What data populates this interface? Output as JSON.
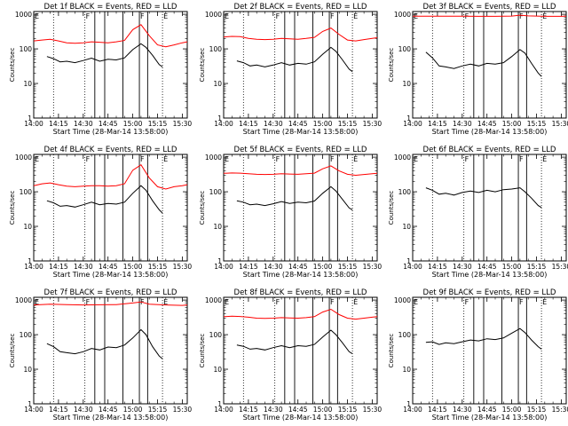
{
  "chart_data": {
    "type": "line",
    "layout": "3x3 grid",
    "x_ticks": [
      "14:00",
      "14:15",
      "14:30",
      "14:45",
      "15:00",
      "15:15",
      "15:30"
    ],
    "xlabel": "Start Time (28-Mar-14 13:58:00)",
    "ylabel": "Counts/sec",
    "y_scale": "log",
    "ylim": [
      1,
      1200
    ],
    "y_ticks": [
      "1",
      "10",
      "100",
      "1000"
    ],
    "dotted_lines_at": [
      "14:12",
      "14:31",
      "15:18",
      "15:33"
    ],
    "solid_lines_at": [
      "14:37",
      "14:43",
      "14:54",
      "15:04",
      "15:09"
    ],
    "segment_markers": [
      "E",
      "F",
      "F",
      "E"
    ],
    "panels": [
      {
        "title": "Det 1f BLACK = Events, RED = LLD",
        "series": [
          {
            "name": "Events",
            "color": "#000000",
            "x": [
              "14:08",
              "14:12",
              "14:16",
              "14:20",
              "14:25",
              "14:30",
              "14:35",
              "14:40",
              "14:45",
              "14:50",
              "14:55",
              "15:00",
              "15:05",
              "15:08",
              "15:12",
              "15:16",
              "15:18"
            ],
            "y": [
              60,
              52,
              42,
              44,
              40,
              46,
              54,
              44,
              50,
              48,
              55,
              95,
              140,
              110,
              65,
              35,
              30
            ]
          },
          {
            "name": "LLD",
            "color": "#ff0000",
            "x": [
              "14:00",
              "14:05",
              "14:10",
              "14:15",
              "14:20",
              "14:25",
              "14:30",
              "14:35",
              "14:40",
              "14:45",
              "14:50",
              "14:55",
              "15:00",
              "15:05",
              "15:10",
              "15:15",
              "15:20",
              "15:25",
              "15:30",
              "15:33"
            ],
            "y": [
              170,
              180,
              190,
              170,
              150,
              145,
              150,
              160,
              155,
              150,
              160,
              175,
              360,
              500,
              240,
              130,
              115,
              130,
              150,
              160
            ]
          }
        ]
      },
      {
        "title": "Det 2f BLACK = Events, RED = LLD",
        "series": [
          {
            "name": "Events",
            "color": "#000000",
            "x": [
              "14:08",
              "14:12",
              "14:16",
              "14:20",
              "14:25",
              "14:30",
              "14:35",
              "14:40",
              "14:45",
              "14:50",
              "14:55",
              "15:00",
              "15:05",
              "15:08",
              "15:12",
              "15:16",
              "15:18"
            ],
            "y": [
              45,
              40,
              32,
              34,
              30,
              34,
              40,
              34,
              38,
              36,
              42,
              70,
              110,
              85,
              48,
              26,
              22
            ]
          },
          {
            "name": "LLD",
            "color": "#ff0000",
            "x": [
              "14:00",
              "14:05",
              "14:10",
              "14:15",
              "14:20",
              "14:25",
              "14:30",
              "14:35",
              "14:40",
              "14:45",
              "14:50",
              "14:55",
              "15:00",
              "15:05",
              "15:10",
              "15:15",
              "15:20",
              "15:25",
              "15:30",
              "15:33"
            ],
            "y": [
              220,
              230,
              225,
              200,
              190,
              185,
              190,
              200,
              195,
              190,
              200,
              215,
              320,
              400,
              260,
              180,
              170,
              185,
              200,
              210
            ]
          }
        ]
      },
      {
        "title": "Det 3f BLACK = Events, RED = LLD",
        "series": [
          {
            "name": "Events",
            "color": "#000000",
            "x": [
              "14:08",
              "14:12",
              "14:16",
              "14:20",
              "14:25",
              "14:30",
              "14:35",
              "14:40",
              "14:45",
              "14:50",
              "14:55",
              "15:00",
              "15:05",
              "15:08",
              "15:12",
              "15:16",
              "15:18"
            ],
            "y": [
              80,
              55,
              32,
              30,
              27,
              32,
              36,
              32,
              38,
              36,
              40,
              60,
              95,
              75,
              38,
              20,
              16
            ]
          },
          {
            "name": "LLD",
            "color": "#ff0000",
            "x": [
              "14:00",
              "14:10",
              "14:20",
              "14:30",
              "14:40",
              "14:50",
              "15:00",
              "15:05",
              "15:10",
              "15:20",
              "15:30",
              "15:33"
            ],
            "y": [
              880,
              880,
              880,
              880,
              870,
              870,
              890,
              940,
              900,
              870,
              870,
              880
            ]
          }
        ]
      },
      {
        "title": "Det 4f BLACK = Events, RED = LLD",
        "series": [
          {
            "name": "Events",
            "color": "#000000",
            "x": [
              "14:08",
              "14:12",
              "14:16",
              "14:20",
              "14:25",
              "14:30",
              "14:35",
              "14:40",
              "14:45",
              "14:50",
              "14:55",
              "15:00",
              "15:05",
              "15:08",
              "15:12",
              "15:16",
              "15:18"
            ],
            "y": [
              55,
              48,
              38,
              40,
              36,
              42,
              50,
              42,
              46,
              44,
              50,
              90,
              150,
              110,
              55,
              30,
              24
            ]
          },
          {
            "name": "LLD",
            "color": "#ff0000",
            "x": [
              "14:00",
              "14:05",
              "14:10",
              "14:15",
              "14:20",
              "14:25",
              "14:30",
              "14:35",
              "14:40",
              "14:45",
              "14:50",
              "14:55",
              "15:00",
              "15:05",
              "15:10",
              "15:15",
              "15:20",
              "15:25",
              "15:30",
              "15:33"
            ],
            "y": [
              150,
              170,
              180,
              160,
              145,
              140,
              145,
              150,
              150,
              145,
              150,
              170,
              420,
              600,
              250,
              140,
              120,
              140,
              150,
              160
            ]
          }
        ]
      },
      {
        "title": "Det 5f BLACK = Events, RED = LLD",
        "series": [
          {
            "name": "Events",
            "color": "#000000",
            "x": [
              "14:08",
              "14:12",
              "14:16",
              "14:20",
              "14:25",
              "14:30",
              "14:35",
              "14:40",
              "14:45",
              "14:50",
              "14:55",
              "15:00",
              "15:05",
              "15:08",
              "15:12",
              "15:16",
              "15:18"
            ],
            "y": [
              55,
              50,
              42,
              44,
              40,
              45,
              52,
              46,
              50,
              48,
              54,
              90,
              140,
              105,
              60,
              34,
              30
            ]
          },
          {
            "name": "LLD",
            "color": "#ff0000",
            "x": [
              "14:00",
              "14:05",
              "14:10",
              "14:15",
              "14:20",
              "14:25",
              "14:30",
              "14:35",
              "14:40",
              "14:45",
              "14:50",
              "14:55",
              "15:00",
              "15:05",
              "15:10",
              "15:15",
              "15:20",
              "15:25",
              "15:30",
              "15:33"
            ],
            "y": [
              340,
              350,
              345,
              330,
              320,
              315,
              320,
              330,
              325,
              320,
              330,
              345,
              460,
              560,
              400,
              320,
              300,
              315,
              330,
              340
            ]
          }
        ]
      },
      {
        "title": "Det 6f BLACK = Events, RED = LLD",
        "series": [
          {
            "name": "Events",
            "color": "#000000",
            "x": [
              "14:08",
              "14:12",
              "14:16",
              "14:20",
              "14:25",
              "14:30",
              "14:35",
              "14:40",
              "14:45",
              "14:50",
              "14:55",
              "15:00",
              "15:05",
              "15:08",
              "15:12",
              "15:16",
              "15:18"
            ],
            "y": [
              130,
              110,
              85,
              90,
              80,
              95,
              105,
              95,
              110,
              100,
              115,
              120,
              130,
              100,
              65,
              40,
              35
            ]
          }
        ]
      },
      {
        "title": "Det 7f BLACK = Events, RED = LLD",
        "series": [
          {
            "name": "Events",
            "color": "#000000",
            "x": [
              "14:08",
              "14:12",
              "14:16",
              "14:20",
              "14:25",
              "14:30",
              "14:35",
              "14:40",
              "14:45",
              "14:50",
              "14:55",
              "15:00",
              "15:05",
              "15:08",
              "15:12",
              "15:16",
              "15:18"
            ],
            "y": [
              55,
              45,
              32,
              30,
              28,
              32,
              40,
              36,
              44,
              42,
              50,
              80,
              140,
              100,
              45,
              24,
              20
            ]
          },
          {
            "name": "LLD",
            "color": "#ff0000",
            "x": [
              "14:00",
              "14:10",
              "14:20",
              "14:30",
              "14:40",
              "14:50",
              "15:00",
              "15:05",
              "15:10",
              "15:20",
              "15:30",
              "15:33"
            ],
            "y": [
              720,
              760,
              740,
              720,
              730,
              740,
              820,
              880,
              760,
              720,
              700,
              720
            ]
          }
        ]
      },
      {
        "title": "Det 8f BLACK = Events, RED = LLD",
        "series": [
          {
            "name": "Events",
            "color": "#000000",
            "x": [
              "14:08",
              "14:12",
              "14:16",
              "14:20",
              "14:25",
              "14:30",
              "14:35",
              "14:40",
              "14:45",
              "14:50",
              "14:55",
              "15:00",
              "15:05",
              "15:08",
              "15:12",
              "15:16",
              "15:18"
            ],
            "y": [
              50,
              46,
              38,
              40,
              36,
              42,
              48,
              42,
              48,
              46,
              52,
              85,
              135,
              100,
              58,
              32,
              28
            ]
          },
          {
            "name": "LLD",
            "color": "#ff0000",
            "x": [
              "14:00",
              "14:05",
              "14:10",
              "14:15",
              "14:20",
              "14:25",
              "14:30",
              "14:35",
              "14:40",
              "14:45",
              "14:50",
              "14:55",
              "15:00",
              "15:05",
              "15:10",
              "15:15",
              "15:20",
              "15:25",
              "15:30",
              "15:33"
            ],
            "y": [
              330,
              340,
              335,
              320,
              300,
              295,
              300,
              310,
              305,
              300,
              310,
              330,
              450,
              540,
              380,
              300,
              280,
              300,
              320,
              330
            ]
          }
        ]
      },
      {
        "title": "Det 9f BLACK = Events, RED = LLD",
        "series": [
          {
            "name": "Events",
            "color": "#000000",
            "x": [
              "14:08",
              "14:12",
              "14:16",
              "14:20",
              "14:25",
              "14:30",
              "14:35",
              "14:40",
              "14:45",
              "14:50",
              "14:55",
              "15:00",
              "15:05",
              "15:08",
              "15:12",
              "15:16",
              "15:18"
            ],
            "y": [
              60,
              62,
              52,
              58,
              55,
              62,
              70,
              66,
              76,
              72,
              80,
              110,
              150,
              115,
              70,
              45,
              38
            ]
          }
        ]
      }
    ]
  }
}
